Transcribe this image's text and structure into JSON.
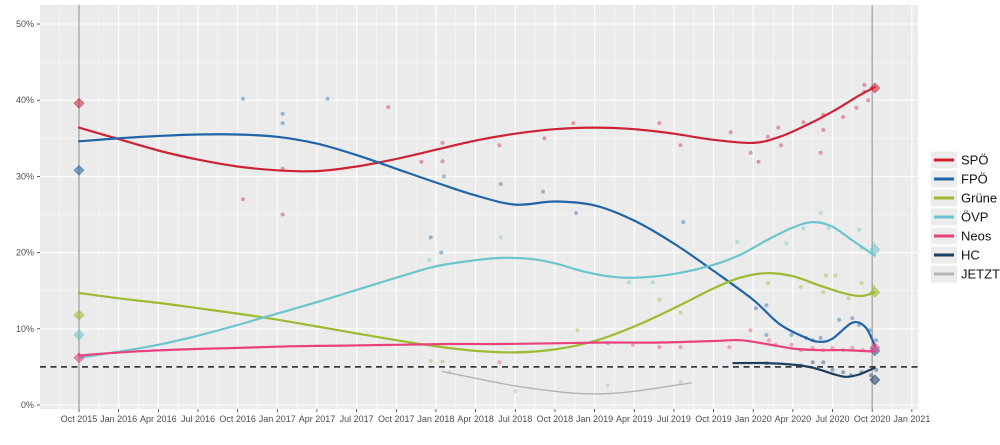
{
  "chart_data": {
    "type": "scatter",
    "title": "",
    "xlabel": "",
    "ylabel": "",
    "grid": true,
    "panel_bg": "#EBEBEB",
    "grid_color": "#FFFFFF",
    "axis_text_color": "#4D4D4D",
    "legend": {
      "position": "right",
      "items": [
        "SPÖ",
        "FPÖ",
        "Grüne",
        "ÖVP",
        "Neos",
        "HC",
        "JETZT"
      ]
    },
    "x_axis": {
      "unit": "months since Oct 2015",
      "tick_months": [
        0,
        3,
        6,
        9,
        12,
        15,
        18,
        21,
        24,
        27,
        30,
        33,
        36,
        39,
        42,
        45,
        48,
        51,
        54,
        57,
        60,
        63
      ],
      "tick_labels": [
        "Oct 2015",
        "Jan 2016",
        "Apr 2016",
        "Jul 2016",
        "Oct 2016",
        "Jan 2017",
        "Apr 2017",
        "Jul 2017",
        "Oct 2017",
        "Jan 2018",
        "Apr 2018",
        "Jul 2018",
        "Oct 2018",
        "Jan 2019",
        "Apr 2019",
        "Jul 2019",
        "Oct 2019",
        "Jan 2020",
        "Apr 2020",
        "Jul 2020",
        "Oct 2020",
        "Jan 2021"
      ]
    },
    "y_axis": {
      "ticks": [
        0,
        10,
        20,
        30,
        40,
        50
      ],
      "tick_labels": [
        "0%",
        "10%",
        "20%",
        "30%",
        "40%",
        "50%"
      ],
      "range": [
        0,
        50
      ]
    },
    "threshold_line": {
      "value": 5,
      "style": "dashed",
      "color": "#3C3C3C"
    },
    "election_lines_months": [
      0,
      60
    ],
    "election_line_color": "#A8A8A8",
    "parties": [
      {
        "id": "spoe",
        "name": "SPÖ",
        "color": "#CD2335",
        "trend": [
          [
            0,
            36.4
          ],
          [
            3,
            34.9
          ],
          [
            6,
            33.4
          ],
          [
            9,
            32.2
          ],
          [
            12,
            31.3
          ],
          [
            15,
            30.8
          ],
          [
            18,
            30.7
          ],
          [
            21,
            31.3
          ],
          [
            24,
            32.3
          ],
          [
            27,
            33.5
          ],
          [
            30,
            34.7
          ],
          [
            33,
            35.6
          ],
          [
            36,
            36.2
          ],
          [
            39,
            36.4
          ],
          [
            42,
            36.2
          ],
          [
            45,
            35.6
          ],
          [
            48,
            34.8
          ],
          [
            51,
            34.4
          ],
          [
            53,
            35.2
          ],
          [
            55,
            36.7
          ],
          [
            57,
            38.5
          ],
          [
            59,
            40.6
          ],
          [
            60.2,
            41.7
          ]
        ],
        "polls": [
          [
            12.4,
            27.0
          ],
          [
            15.4,
            31.0
          ],
          [
            15.4,
            25.0
          ],
          [
            23.4,
            39.1
          ],
          [
            25.9,
            31.9
          ],
          [
            27.5,
            34.4
          ],
          [
            27.5,
            32.0
          ],
          [
            31.8,
            34.1
          ],
          [
            35.2,
            35.0
          ],
          [
            37.4,
            37.0
          ],
          [
            43.9,
            37.0
          ],
          [
            45.5,
            34.1
          ],
          [
            49.3,
            35.8
          ],
          [
            50.8,
            33.1
          ],
          [
            51.4,
            31.9
          ],
          [
            52.1,
            35.2
          ],
          [
            52.9,
            36.4
          ],
          [
            53.1,
            34.1
          ],
          [
            54.8,
            37.1
          ],
          [
            56.1,
            33.1
          ],
          [
            56.3,
            38.1
          ],
          [
            56.3,
            36.1
          ],
          [
            57.8,
            37.8
          ],
          [
            58.8,
            39.0
          ],
          [
            59.4,
            41.1
          ],
          [
            59.4,
            42.0
          ],
          [
            59.7,
            40.0
          ]
        ],
        "results": [
          [
            0,
            39.6
          ],
          [
            60.2,
            41.6
          ]
        ]
      },
      {
        "id": "fpoe",
        "name": "FPÖ",
        "color": "#1F65A7",
        "trend": [
          [
            0,
            34.6
          ],
          [
            3,
            35.0
          ],
          [
            6,
            35.3
          ],
          [
            9,
            35.5
          ],
          [
            12,
            35.5
          ],
          [
            15,
            35.2
          ],
          [
            18,
            34.3
          ],
          [
            21,
            32.8
          ],
          [
            24,
            31.0
          ],
          [
            27,
            29.2
          ],
          [
            30,
            27.5
          ],
          [
            33,
            26.3
          ],
          [
            36,
            26.7
          ],
          [
            39,
            26.2
          ],
          [
            42,
            24.2
          ],
          [
            45,
            21.2
          ],
          [
            48,
            17.6
          ],
          [
            51,
            13.8
          ],
          [
            53,
            10.6
          ],
          [
            55,
            8.8
          ],
          [
            56,
            8.3
          ],
          [
            57,
            8.7
          ],
          [
            58.5,
            10.8
          ],
          [
            59.5,
            10.2
          ],
          [
            60.2,
            7.8
          ]
        ],
        "polls": [
          [
            12.4,
            40.2
          ],
          [
            15.4,
            38.2
          ],
          [
            15.4,
            37.0
          ],
          [
            18.8,
            40.2
          ],
          [
            26.6,
            22.0
          ],
          [
            27.4,
            20.0
          ],
          [
            27.6,
            30.0
          ],
          [
            31.9,
            29.0
          ],
          [
            35.1,
            28.0
          ],
          [
            37.6,
            25.2
          ],
          [
            45.7,
            24.0
          ],
          [
            51.2,
            12.7
          ],
          [
            52.0,
            13.1
          ],
          [
            52.0,
            9.2
          ],
          [
            53.9,
            9.2
          ],
          [
            55.0,
            8.8
          ],
          [
            55.5,
            8.5
          ],
          [
            56.1,
            8.8
          ],
          [
            57.5,
            11.2
          ],
          [
            58.5,
            11.4
          ],
          [
            59.0,
            10.5
          ],
          [
            59.8,
            9.8
          ],
          [
            60.3,
            8.5
          ]
        ],
        "results": [
          [
            0,
            30.8
          ],
          [
            60.2,
            7.1
          ]
        ]
      },
      {
        "id": "gruene",
        "name": "Grüne",
        "color": "#9BBB30",
        "trend": [
          [
            0,
            14.7
          ],
          [
            3,
            14.0
          ],
          [
            6,
            13.4
          ],
          [
            9,
            12.7
          ],
          [
            12,
            12.0
          ],
          [
            15,
            11.2
          ],
          [
            18,
            10.3
          ],
          [
            21,
            9.4
          ],
          [
            24,
            8.5
          ],
          [
            27,
            7.7
          ],
          [
            30,
            7.1
          ],
          [
            33,
            6.9
          ],
          [
            36,
            7.3
          ],
          [
            39,
            8.4
          ],
          [
            42,
            10.3
          ],
          [
            45,
            12.7
          ],
          [
            48,
            15.3
          ],
          [
            50,
            16.7
          ],
          [
            52,
            17.3
          ],
          [
            54,
            16.9
          ],
          [
            56,
            15.7
          ],
          [
            58,
            14.6
          ],
          [
            59.2,
            14.3
          ],
          [
            60.2,
            14.8
          ]
        ],
        "polls": [
          [
            26.6,
            5.8
          ],
          [
            27.5,
            5.7
          ],
          [
            37.7,
            9.8
          ],
          [
            43.9,
            13.8
          ],
          [
            45.5,
            12.1
          ],
          [
            52.1,
            16.0
          ],
          [
            54.6,
            15.5
          ],
          [
            56.3,
            14.8
          ],
          [
            56.5,
            17.0
          ],
          [
            57.2,
            17.0
          ],
          [
            58.2,
            14.0
          ],
          [
            59.2,
            16.0
          ],
          [
            60.1,
            15.5
          ]
        ],
        "results": [
          [
            0,
            11.8
          ],
          [
            60.2,
            14.8
          ]
        ]
      },
      {
        "id": "oevp",
        "name": "ÖVP",
        "color": "#6CC5CE",
        "trend": [
          [
            0,
            6.2
          ],
          [
            3,
            7.0
          ],
          [
            6,
            7.9
          ],
          [
            9,
            9.1
          ],
          [
            12,
            10.5
          ],
          [
            15,
            12.0
          ],
          [
            18,
            13.5
          ],
          [
            21,
            15.1
          ],
          [
            24,
            16.7
          ],
          [
            27,
            18.2
          ],
          [
            30,
            19.0
          ],
          [
            32,
            19.3
          ],
          [
            34,
            19.2
          ],
          [
            36,
            18.6
          ],
          [
            38,
            17.6
          ],
          [
            40,
            16.9
          ],
          [
            42,
            16.7
          ],
          [
            45,
            17.2
          ],
          [
            48,
            18.4
          ],
          [
            50,
            19.7
          ],
          [
            52,
            21.6
          ],
          [
            54,
            23.3
          ],
          [
            55.5,
            24.0
          ],
          [
            57,
            23.4
          ],
          [
            58.5,
            21.6
          ],
          [
            60.2,
            19.6
          ]
        ],
        "polls": [
          [
            26.5,
            19.0
          ],
          [
            31.9,
            22.0
          ],
          [
            41.6,
            16.1
          ],
          [
            43.4,
            16.1
          ],
          [
            49.8,
            21.4
          ],
          [
            53.5,
            21.2
          ],
          [
            54.8,
            23.2
          ],
          [
            56.1,
            25.2
          ],
          [
            56.7,
            23.2
          ],
          [
            59.0,
            23.0
          ],
          [
            59.2,
            20.6
          ],
          [
            60.1,
            21.2
          ]
        ],
        "results": [
          [
            0,
            9.2
          ],
          [
            60.2,
            20.4
          ]
        ]
      },
      {
        "id": "neos",
        "name": "Neos",
        "color": "#E8417E",
        "trend": [
          [
            0,
            6.5
          ],
          [
            4,
            7.0
          ],
          [
            8,
            7.3
          ],
          [
            12,
            7.5
          ],
          [
            16,
            7.7
          ],
          [
            20,
            7.8
          ],
          [
            24,
            7.9
          ],
          [
            28,
            8.0
          ],
          [
            32,
            8.0
          ],
          [
            36,
            8.1
          ],
          [
            40,
            8.2
          ],
          [
            44,
            8.2
          ],
          [
            48,
            8.4
          ],
          [
            50,
            8.5
          ],
          [
            52,
            8.0
          ],
          [
            54,
            7.4
          ],
          [
            56,
            7.2
          ],
          [
            58,
            7.2
          ],
          [
            60.2,
            7.0
          ]
        ],
        "polls": [
          [
            31.8,
            5.6
          ],
          [
            40.0,
            8.1
          ],
          [
            41.9,
            7.9
          ],
          [
            43.9,
            7.6
          ],
          [
            45.5,
            7.6
          ],
          [
            49.2,
            7.6
          ],
          [
            50.8,
            9.8
          ],
          [
            52.2,
            8.5
          ],
          [
            52.7,
            7.9
          ],
          [
            53.9,
            7.9
          ],
          [
            54.6,
            7.2
          ],
          [
            55.5,
            7.5
          ],
          [
            56.3,
            7.2
          ],
          [
            57.0,
            7.5
          ],
          [
            57.8,
            7.2
          ],
          [
            58.5,
            7.5
          ],
          [
            59.3,
            7.2
          ],
          [
            60.0,
            7.2
          ]
        ],
        "results": [
          [
            0,
            6.2
          ],
          [
            60.2,
            7.5
          ]
        ]
      },
      {
        "id": "hc",
        "name": "HC",
        "color": "#1C3D5C",
        "trend": [
          [
            49.5,
            5.5
          ],
          [
            52,
            5.5
          ],
          [
            54,
            5.3
          ],
          [
            55.5,
            4.9
          ],
          [
            57,
            4.1
          ],
          [
            58,
            3.7
          ],
          [
            59,
            4.0
          ],
          [
            60.2,
            4.9
          ]
        ],
        "polls": [
          [
            52.0,
            5.5
          ],
          [
            54.6,
            5.2
          ],
          [
            55.5,
            5.6
          ],
          [
            56.3,
            5.6
          ],
          [
            57.0,
            4.6
          ],
          [
            57.8,
            4.3
          ],
          [
            58.4,
            3.9
          ],
          [
            59.2,
            4.3
          ],
          [
            59.9,
            3.9
          ],
          [
            60.3,
            4.6
          ]
        ],
        "results": [
          [
            60.2,
            3.3
          ]
        ]
      },
      {
        "id": "jetzt",
        "name": "JETZT",
        "color": "#B3B3B3",
        "trend": [
          [
            27.5,
            4.4
          ],
          [
            30,
            3.5
          ],
          [
            33,
            2.5
          ],
          [
            36,
            1.8
          ],
          [
            38,
            1.5
          ],
          [
            40,
            1.5
          ],
          [
            42,
            1.8
          ],
          [
            44,
            2.3
          ],
          [
            46.3,
            2.9
          ]
        ],
        "polls": [
          [
            28.0,
            4.3
          ],
          [
            33.0,
            1.8
          ],
          [
            40.0,
            2.6
          ],
          [
            45.5,
            3.0
          ]
        ],
        "results": []
      }
    ]
  }
}
